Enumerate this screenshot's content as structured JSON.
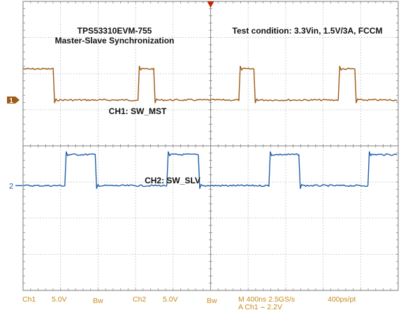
{
  "chart_data": {
    "type": "line",
    "title": "TPS53310EVM-755",
    "subtitle": "Master-Slave Synchronization",
    "test_condition": "Test condition: 3.3Vin, 1.5V/3A, FCCM",
    "x_divisions": 10,
    "y_divisions": 8,
    "time_per_division_ns": 400,
    "volts_per_division": 5.0,
    "series": [
      {
        "name": "CH1: SW_MST",
        "channel_marker": "1",
        "color": "#9c5a14",
        "ground_division": 2.73,
        "low_v": 0.0,
        "high_v": 4.3,
        "edges_div": [
          0.84,
          3.1,
          3.52,
          5.79,
          6.19,
          8.44,
          8.88
        ],
        "initial_state": "high"
      },
      {
        "name": "CH2: SW_SLV",
        "channel_marker": "2",
        "color": "#1d5ea8",
        "ground_division": 5.1,
        "low_v": 0.0,
        "high_v": 4.3,
        "edges_div": [
          1.15,
          1.96,
          3.87,
          4.71,
          6.59,
          7.39,
          9.23
        ],
        "initial_state": "low"
      }
    ],
    "trigger_marker": "top-center",
    "trigger_color": "#cc2200"
  },
  "status_bar": {
    "ch1_label": "Ch1",
    "ch1_scale": "5.0V",
    "ch1_bw": "Bw",
    "ch2_label": "Ch2",
    "ch2_scale": "5.0V",
    "ch2_bw": "Bw",
    "timebase": "M 400ns 2.5GS/s",
    "record": "400ps/pt",
    "trigger": "A  Ch1  ⌢  2.2V",
    "color": "#c78a1a"
  }
}
